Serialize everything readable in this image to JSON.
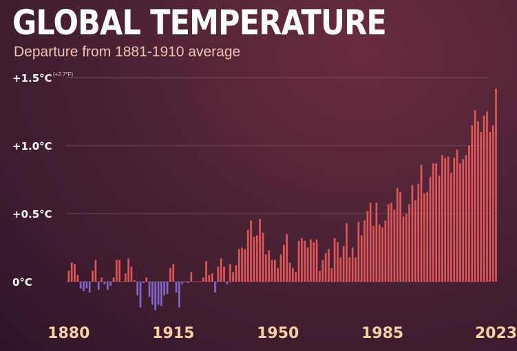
{
  "header": {
    "title": "GLOBAL TEMPERATURE",
    "subtitle": "Departure from 1881-1910 average"
  },
  "colors": {
    "positive": "#de5656",
    "negative": "#8266c8",
    "grid": "#8a5a6c",
    "ytick": "#ffffff",
    "xtick": "#f6cfa6"
  },
  "chart_data": {
    "type": "bar",
    "title": "GLOBAL TEMPERATURE",
    "subtitle": "Departure from 1881-1910 average",
    "xlabel": "",
    "ylabel": "",
    "ylim": [
      -0.2,
      1.5
    ],
    "grid": true,
    "y_ticks": [
      {
        "value": 1.5,
        "label": "+1.5°C",
        "note": "(+2.7°F)"
      },
      {
        "value": 1.0,
        "label": "+1.0°C"
      },
      {
        "value": 0.5,
        "label": "+0.5°C"
      },
      {
        "value": 0.0,
        "label": "0°C"
      }
    ],
    "x_ticks": [
      {
        "year": 1880,
        "label": "1880"
      },
      {
        "year": 1915,
        "label": "1915"
      },
      {
        "year": 1950,
        "label": "1950"
      },
      {
        "year": 1985,
        "label": "1985"
      },
      {
        "year": 2023,
        "label": "2023"
      }
    ],
    "years": [
      1880,
      2023
    ],
    "values": [
      0.08,
      0.14,
      0.13,
      0.05,
      -0.05,
      -0.07,
      -0.05,
      -0.08,
      0.08,
      0.16,
      -0.06,
      0.03,
      -0.02,
      -0.06,
      -0.03,
      0.03,
      0.16,
      0.16,
      0.0,
      0.06,
      0.17,
      0.11,
      0.01,
      -0.1,
      -0.19,
      -0.01,
      0.03,
      -0.11,
      -0.17,
      -0.21,
      -0.17,
      -0.18,
      -0.1,
      -0.09,
      0.1,
      0.13,
      -0.08,
      -0.19,
      -0.02,
      0.0,
      -0.01,
      0.07,
      0.0,
      0.0,
      0.0,
      0.03,
      0.15,
      0.05,
      0.06,
      -0.08,
      0.11,
      0.17,
      0.11,
      -0.02,
      0.13,
      0.07,
      0.12,
      0.24,
      0.25,
      0.24,
      0.38,
      0.45,
      0.33,
      0.34,
      0.46,
      0.36,
      0.2,
      0.23,
      0.16,
      0.16,
      0.1,
      0.2,
      0.27,
      0.35,
      0.14,
      0.1,
      0.07,
      0.3,
      0.32,
      0.3,
      0.25,
      0.31,
      0.29,
      0.31,
      0.08,
      0.16,
      0.21,
      0.24,
      0.1,
      0.32,
      0.29,
      0.18,
      0.26,
      0.43,
      0.18,
      0.25,
      0.18,
      0.44,
      0.34,
      0.45,
      0.52,
      0.58,
      0.41,
      0.58,
      0.42,
      0.4,
      0.45,
      0.57,
      0.58,
      0.53,
      0.69,
      0.66,
      0.48,
      0.5,
      0.57,
      0.71,
      0.6,
      0.72,
      0.86,
      0.65,
      0.66,
      0.77,
      0.87,
      0.87,
      0.78,
      0.93,
      0.91,
      0.92,
      0.8,
      0.91,
      0.97,
      0.87,
      0.9,
      0.93,
      1.0,
      1.15,
      1.26,
      1.18,
      1.1,
      1.22,
      1.25,
      1.1,
      1.15,
      1.42
    ]
  }
}
